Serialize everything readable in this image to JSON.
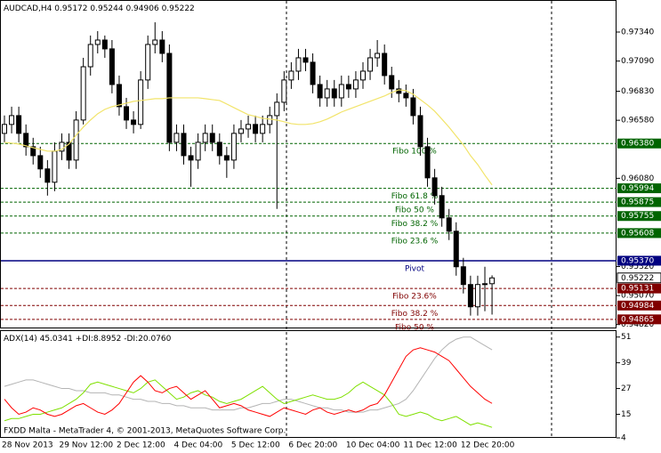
{
  "chart_data": [
    {
      "type": "candlestick",
      "title": "AUDCAD,H4",
      "categories": [
        "28 Nov 2013",
        null,
        null,
        null,
        null,
        null,
        null,
        null,
        "29 Nov 12:00",
        null,
        null,
        null,
        null,
        null,
        null,
        null,
        "2 Dec 12:00",
        null,
        null,
        null,
        null,
        null,
        null,
        null,
        "4 Dec 04:00",
        null,
        null,
        null,
        null,
        null,
        null,
        null,
        "5 Dec 12:00",
        null,
        null,
        null,
        null,
        null,
        null,
        null,
        "6 Dec 20:00",
        null,
        null,
        null,
        null,
        null,
        null,
        null,
        "10 Dec 04:00",
        null,
        null,
        null,
        null,
        null,
        null,
        null,
        "11 Dec 12:00",
        null,
        null,
        null,
        null,
        null,
        null,
        null,
        "12 Dec 20:00",
        null,
        null,
        null,
        null
      ],
      "open": [
        0.96467,
        0.96544,
        0.9662,
        0.96467,
        0.96352,
        0.96275,
        0.96161,
        0.96046,
        0.96314,
        0.9639,
        0.96237,
        0.96582,
        0.97041,
        0.97233,
        0.97271,
        0.97195,
        0.96888,
        0.96697,
        0.96582,
        0.96544,
        0.96927,
        0.97233,
        0.97271,
        0.97156,
        0.9639,
        0.96467,
        0.96275,
        0.96237,
        0.9639,
        0.96467,
        0.9639,
        0.96275,
        0.96237,
        0.96467,
        0.96505,
        0.96544,
        0.96467,
        0.96544,
        0.9662,
        0.96735,
        0.96927,
        0.97003,
        0.97118,
        0.9708,
        0.96888,
        0.96773,
        0.9685,
        0.96773,
        0.96888,
        0.9685,
        0.96927,
        0.97003,
        0.97118,
        0.97156,
        0.96965,
        0.9685,
        0.96812,
        0.96773,
        0.9662,
        0.96352,
        0.96084,
        0.95931,
        0.95739,
        0.95624,
        0.95318,
        0.95165,
        0.94973,
        0.95165,
        0.95172
      ],
      "high": [
        0.96621,
        0.96697,
        0.96697,
        0.96544,
        0.96429,
        0.96352,
        0.96237,
        0.9639,
        0.96467,
        0.96467,
        0.96658,
        0.97118,
        0.9731,
        0.97348,
        0.9731,
        0.97271,
        0.96965,
        0.96773,
        0.96658,
        0.97003,
        0.9731,
        0.97424,
        0.97348,
        0.97233,
        0.96544,
        0.96544,
        0.96352,
        0.96467,
        0.96544,
        0.96544,
        0.96467,
        0.96352,
        0.96544,
        0.96582,
        0.9662,
        0.9662,
        0.9662,
        0.96697,
        0.96812,
        0.97003,
        0.9708,
        0.97195,
        0.97195,
        0.97156,
        0.96965,
        0.96927,
        0.96927,
        0.96965,
        0.96965,
        0.97003,
        0.9708,
        0.97195,
        0.97271,
        0.97233,
        0.97041,
        0.96927,
        0.96888,
        0.9685,
        0.96697,
        0.96429,
        0.96161,
        0.96007,
        0.95816,
        0.95701,
        0.95395,
        0.95241,
        0.95241,
        0.95318,
        0.95244
      ],
      "low": [
        0.9639,
        0.96467,
        0.9639,
        0.96275,
        0.96199,
        0.96084,
        0.95931,
        0.95969,
        0.96237,
        0.96161,
        0.96161,
        0.96544,
        0.96965,
        0.97156,
        0.97118,
        0.96812,
        0.9662,
        0.96505,
        0.96467,
        0.96505,
        0.9685,
        0.97156,
        0.9708,
        0.96314,
        0.96314,
        0.96199,
        0.96007,
        0.96161,
        0.96314,
        0.96314,
        0.96199,
        0.96084,
        0.96161,
        0.9639,
        0.96429,
        0.9639,
        0.9639,
        0.96467,
        0.95816,
        0.96658,
        0.9685,
        0.96927,
        0.97003,
        0.96812,
        0.96697,
        0.96697,
        0.96697,
        0.96697,
        0.96773,
        0.96773,
        0.9685,
        0.96927,
        0.97041,
        0.96888,
        0.96773,
        0.96735,
        0.96697,
        0.96544,
        0.96275,
        0.96007,
        0.95854,
        0.95663,
        0.95548,
        0.95241,
        0.95088,
        0.94897,
        0.94897,
        0.94935,
        0.94906
      ],
      "close": [
        0.96544,
        0.9662,
        0.96467,
        0.96352,
        0.96275,
        0.96161,
        0.96046,
        0.96314,
        0.9639,
        0.96237,
        0.96582,
        0.97041,
        0.97233,
        0.97271,
        0.97195,
        0.96888,
        0.96697,
        0.96582,
        0.96544,
        0.96927,
        0.97233,
        0.97271,
        0.97156,
        0.9639,
        0.96467,
        0.96275,
        0.96237,
        0.9639,
        0.96467,
        0.9639,
        0.96275,
        0.96237,
        0.96467,
        0.96505,
        0.96544,
        0.96467,
        0.96544,
        0.9662,
        0.96735,
        0.96927,
        0.97003,
        0.97118,
        0.9708,
        0.96888,
        0.96773,
        0.9685,
        0.96773,
        0.96888,
        0.9685,
        0.96927,
        0.97003,
        0.97118,
        0.97156,
        0.96965,
        0.9685,
        0.96812,
        0.96773,
        0.9662,
        0.96352,
        0.96084,
        0.95931,
        0.95739,
        0.95624,
        0.95318,
        0.95165,
        0.94973,
        0.95165,
        0.95172,
        0.95222
      ],
      "up_color": "#ffffff",
      "down_color": "#000000",
      "moving_average": {
        "color": "#f2e46a",
        "values": [
          0.9639,
          0.96383,
          0.96375,
          0.9636,
          0.96344,
          0.96329,
          0.96314,
          0.96314,
          0.96329,
          0.96375,
          0.96452,
          0.96521,
          0.96582,
          0.96636,
          0.96674,
          0.96697,
          0.96712,
          0.96727,
          0.96743,
          0.9675,
          0.96758,
          0.96766,
          0.96766,
          0.96773,
          0.96773,
          0.96773,
          0.96773,
          0.96773,
          0.96766,
          0.96758,
          0.9675,
          0.9672,
          0.96689,
          0.96658,
          0.96628,
          0.96613,
          0.96597,
          0.9659,
          0.96582,
          0.96567,
          0.96551,
          0.96544,
          0.96544,
          0.96551,
          0.96567,
          0.9659,
          0.9662,
          0.96651,
          0.96674,
          0.96697,
          0.9672,
          0.96743,
          0.96766,
          0.96789,
          0.96819,
          0.96842,
          0.96835,
          0.96804,
          0.96758,
          0.96712,
          0.96658,
          0.9659,
          0.96521,
          0.96444,
          0.96368,
          0.96275,
          0.96199,
          0.96107,
          0.96023
        ]
      },
      "ylim": [
        0.94787,
        0.97616
      ],
      "yticks": [
        {
          "value": 0.9734,
          "label": "0.97340"
        },
        {
          "value": 0.9709,
          "label": "0.97090"
        },
        {
          "value": 0.9683,
          "label": "0.96830"
        },
        {
          "value": 0.9658,
          "label": "0.96580"
        },
        {
          "value": 0.9608,
          "label": "0.96080"
        },
        {
          "value": 0.9532,
          "label": "0.95320"
        },
        {
          "value": 0.9507,
          "label": "0.95070"
        },
        {
          "value": 0.9482,
          "label": "0.94820"
        }
      ],
      "levels": [
        {
          "name": "Fibo 100 %",
          "value": 0.9638,
          "label": "0.96380",
          "color": "#006400",
          "line_style": "dashed"
        },
        {
          "name": "Fibo 61.8 %",
          "value": 0.95994,
          "label": "0.95994",
          "color": "#006400",
          "line_style": "dashed"
        },
        {
          "name": "Fibo 50 %",
          "value": 0.95875,
          "label": "0.95875",
          "color": "#006400",
          "line_style": "dashed"
        },
        {
          "name": "Fibo 38.2 %",
          "value": 0.95755,
          "label": "0.95755",
          "color": "#006400",
          "line_style": "dashed"
        },
        {
          "name": "Fibo 23.6 %",
          "value": 0.95608,
          "label": "0.95608",
          "color": "#006400",
          "line_style": "dashed"
        },
        {
          "name": "Pivot",
          "value": 0.9537,
          "label": "0.95370",
          "color": "#000080",
          "line_style": "solid"
        },
        {
          "name": "Fibo 23.6%",
          "value": 0.95131,
          "label": "0.95131",
          "color": "#800000",
          "line_style": "dashed"
        },
        {
          "name": "Fibo 38.2 %",
          "value": 0.94984,
          "label": "0.94984",
          "color": "#800000",
          "line_style": "dashed"
        },
        {
          "name": "Fibo 50 %",
          "value": 0.94865,
          "label": "0.94865",
          "color": "#800000",
          "line_style": "dashed"
        }
      ]
    },
    {
      "type": "line",
      "series": [
        {
          "name": "ADX(14)",
          "color": "#b4b4b4",
          "values": [
            28,
            29,
            30,
            31,
            31,
            30,
            29,
            28,
            27,
            27,
            26,
            26,
            25,
            25,
            25,
            24,
            24,
            23,
            22,
            22,
            21,
            21,
            20,
            20,
            19,
            19,
            18,
            18,
            18,
            17,
            17,
            17,
            17,
            18,
            18,
            19,
            20,
            20,
            21,
            22,
            22,
            21,
            20,
            19,
            18,
            18,
            17,
            17,
            16,
            16,
            16,
            17,
            17,
            18,
            19,
            20,
            22,
            26,
            31,
            36,
            41,
            45,
            48,
            50,
            51,
            51,
            49,
            47,
            45.0341
          ]
        },
        {
          "name": "+DI:",
          "color": "#7fe000",
          "values": [
            12,
            13,
            13,
            14,
            15,
            15,
            16,
            17,
            18,
            20,
            22,
            25,
            29,
            30,
            29,
            28,
            27,
            26,
            25,
            27,
            30,
            31,
            28,
            25,
            22,
            23,
            25,
            26,
            24,
            23,
            21,
            20,
            21,
            22,
            24,
            26,
            28,
            25,
            22,
            20,
            21,
            22,
            23,
            24,
            23,
            22,
            22,
            23,
            25,
            28,
            30,
            28,
            26,
            24,
            20,
            15,
            14,
            15,
            16,
            15,
            13,
            12,
            13,
            14,
            12,
            10,
            11,
            10,
            8.8952
          ]
        },
        {
          "name": "-DI:",
          "color": "#ff0000",
          "values": [
            22,
            18,
            15,
            16,
            18,
            17,
            15,
            14,
            15,
            17,
            19,
            20,
            18,
            16,
            15,
            17,
            20,
            25,
            30,
            33,
            30,
            26,
            25,
            27,
            28,
            25,
            22,
            24,
            26,
            22,
            18,
            19,
            20,
            19,
            17,
            16,
            15,
            14,
            16,
            18,
            17,
            16,
            15,
            17,
            18,
            16,
            15,
            16,
            17,
            16,
            17,
            19,
            20,
            24,
            30,
            36,
            42,
            45,
            46,
            45,
            44,
            42,
            40,
            36,
            32,
            28,
            25,
            22,
            20.076
          ],
          "value_labels": [
            null,
            null,
            null,
            null,
            null,
            null,
            null,
            null,
            null,
            null,
            null,
            null,
            null,
            null,
            null,
            null,
            null,
            null,
            null,
            null,
            null,
            null,
            null,
            null,
            null,
            null,
            null,
            null,
            null,
            null,
            null,
            null,
            null,
            null,
            null,
            null,
            null,
            null,
            null,
            null,
            null,
            null,
            null,
            null,
            null,
            null,
            null,
            null,
            null,
            null,
            null,
            null,
            null,
            null,
            null,
            null,
            null,
            null,
            null,
            null,
            null,
            null,
            null,
            null,
            null,
            null,
            null,
            null,
            "20.0760"
          ]
        }
      ],
      "ylim": [
        4,
        54.2
      ],
      "yticks": [
        51,
        39,
        27,
        15,
        4
      ],
      "footer": "FXDD Malta - MetaTrader 4, © 2001-2013, MetaQuotes Software Corp."
    }
  ]
}
